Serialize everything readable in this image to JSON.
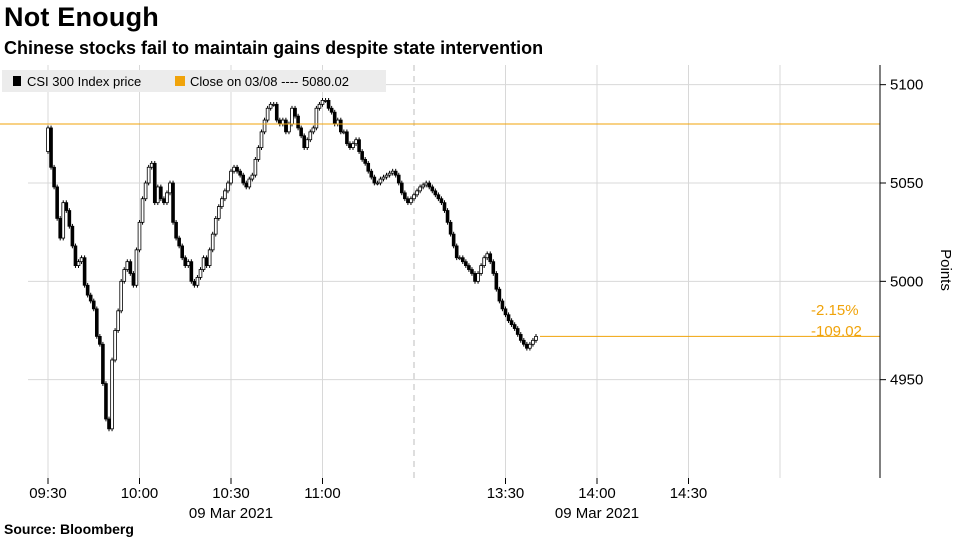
{
  "title": "Not Enough",
  "subtitle": "Chinese stocks fail to maintain gains despite state intervention",
  "source": "Source: Bloomberg",
  "colors": {
    "candle": "#000000",
    "reference": "#f0a30a",
    "grid": "#d8d8d8",
    "axis": "#000000"
  },
  "chart_data": {
    "type": "candlestick",
    "title": "Not Enough",
    "subtitle": "Chinese stocks fail to maintain gains despite state intervention",
    "ylabel": "Points",
    "ylim": [
      4900,
      5110
    ],
    "yticks": [
      4950,
      5000,
      5050,
      5100
    ],
    "xticks": [
      {
        "minute": 0,
        "label": "09:30"
      },
      {
        "minute": 30,
        "label": "10:00"
      },
      {
        "minute": 60,
        "label": "10:30"
      },
      {
        "minute": 90,
        "label": "11:00"
      },
      {
        "minute": 150,
        "label": "13:30"
      },
      {
        "minute": 180,
        "label": "14:00"
      },
      {
        "minute": 210,
        "label": "14:30"
      }
    ],
    "date_labels": [
      {
        "minute": 60,
        "label": "09 Mar 2021"
      },
      {
        "minute": 180,
        "label": "09 Mar 2021"
      }
    ],
    "session_break_minute": 120,
    "session_end_minute": 240,
    "grid": true,
    "legend": {
      "position": "top-left",
      "entries": [
        {
          "label": "CSI 300 Index price"
        },
        {
          "label": "Close on 03/08 ---- 5080.02"
        }
      ]
    },
    "reference_line": {
      "label": "Close on 03/08",
      "value": 5080.02
    },
    "annotations": [
      "-2.15%",
      "-109.02"
    ],
    "price_path": [
      [
        -5,
        5066
      ],
      [
        0,
        5078
      ],
      [
        1,
        5058
      ],
      [
        2,
        5048
      ],
      [
        3,
        5032
      ],
      [
        4,
        5022
      ],
      [
        5,
        5040
      ],
      [
        6,
        5036
      ],
      [
        7,
        5028
      ],
      [
        8,
        5018
      ],
      [
        9,
        5008
      ],
      [
        10,
        5010
      ],
      [
        11,
        5012
      ],
      [
        12,
        4998
      ],
      [
        13,
        4993
      ],
      [
        14,
        4990
      ],
      [
        15,
        4986
      ],
      [
        16,
        4972
      ],
      [
        17,
        4968
      ],
      [
        18,
        4948
      ],
      [
        19,
        4930
      ],
      [
        20,
        4925
      ],
      [
        21,
        4960
      ],
      [
        22,
        4975
      ],
      [
        23,
        4985
      ],
      [
        24,
        5000
      ],
      [
        25,
        5006
      ],
      [
        26,
        5010
      ],
      [
        27,
        5004
      ],
      [
        28,
        4998
      ],
      [
        29,
        5016
      ],
      [
        30,
        5030
      ],
      [
        31,
        5042
      ],
      [
        32,
        5050
      ],
      [
        33,
        5058
      ],
      [
        34,
        5060
      ],
      [
        35,
        5040
      ],
      [
        36,
        5048
      ],
      [
        37,
        5042
      ],
      [
        38,
        5040
      ],
      [
        39,
        5045
      ],
      [
        40,
        5050
      ],
      [
        41,
        5030
      ],
      [
        42,
        5022
      ],
      [
        43,
        5018
      ],
      [
        44,
        5012
      ],
      [
        45,
        5008
      ],
      [
        46,
        5010
      ],
      [
        47,
        5000
      ],
      [
        48,
        4998
      ],
      [
        49,
        5002
      ],
      [
        50,
        5006
      ],
      [
        51,
        5012
      ],
      [
        52,
        5008
      ],
      [
        53,
        5016
      ],
      [
        54,
        5024
      ],
      [
        55,
        5032
      ],
      [
        56,
        5038
      ],
      [
        57,
        5042
      ],
      [
        58,
        5046
      ],
      [
        59,
        5050
      ],
      [
        60,
        5056
      ],
      [
        61,
        5058
      ],
      [
        62,
        5056
      ],
      [
        63,
        5054
      ],
      [
        64,
        5050
      ],
      [
        65,
        5048
      ],
      [
        66,
        5052
      ],
      [
        67,
        5054
      ],
      [
        68,
        5062
      ],
      [
        69,
        5068
      ],
      [
        70,
        5076
      ],
      [
        71,
        5082
      ],
      [
        72,
        5088
      ],
      [
        73,
        5090
      ],
      [
        74,
        5090
      ],
      [
        75,
        5082
      ],
      [
        76,
        5080
      ],
      [
        77,
        5082
      ],
      [
        78,
        5076
      ],
      [
        79,
        5080
      ],
      [
        80,
        5088
      ],
      [
        81,
        5084
      ],
      [
        82,
        5078
      ],
      [
        83,
        5074
      ],
      [
        84,
        5068
      ],
      [
        85,
        5072
      ],
      [
        86,
        5076
      ],
      [
        87,
        5078
      ],
      [
        88,
        5088
      ],
      [
        89,
        5090
      ],
      [
        90,
        5092
      ],
      [
        91,
        5092
      ],
      [
        92,
        5088
      ],
      [
        93,
        5086
      ],
      [
        94,
        5080
      ],
      [
        95,
        5082
      ],
      [
        96,
        5076
      ],
      [
        97,
        5076
      ],
      [
        98,
        5070
      ],
      [
        99,
        5068
      ],
      [
        100,
        5070
      ],
      [
        101,
        5072
      ],
      [
        102,
        5066
      ],
      [
        103,
        5062
      ],
      [
        104,
        5060
      ],
      [
        105,
        5056
      ],
      [
        106,
        5053
      ],
      [
        107,
        5050
      ],
      [
        108,
        5050
      ],
      [
        109,
        5052
      ],
      [
        110,
        5053
      ],
      [
        111,
        5054
      ],
      [
        112,
        5055
      ],
      [
        113,
        5056
      ],
      [
        114,
        5054
      ],
      [
        115,
        5050
      ],
      [
        116,
        5045
      ],
      [
        117,
        5042
      ],
      [
        118,
        5040
      ],
      [
        119,
        5042
      ],
      [
        120,
        5044
      ],
      [
        121,
        5046
      ],
      [
        122,
        5048
      ],
      [
        123,
        5049
      ],
      [
        124,
        5050
      ],
      [
        125,
        5048
      ],
      [
        126,
        5046
      ],
      [
        127,
        5044
      ],
      [
        128,
        5042
      ],
      [
        129,
        5040
      ],
      [
        130,
        5036
      ],
      [
        131,
        5030
      ],
      [
        132,
        5024
      ],
      [
        133,
        5018
      ],
      [
        134,
        5012
      ],
      [
        135,
        5012
      ],
      [
        136,
        5010
      ],
      [
        137,
        5008
      ],
      [
        138,
        5006
      ],
      [
        139,
        5004
      ],
      [
        140,
        5000
      ],
      [
        141,
        5004
      ],
      [
        142,
        5008
      ],
      [
        143,
        5012
      ],
      [
        144,
        5014
      ],
      [
        145,
        5010
      ],
      [
        146,
        5004
      ],
      [
        147,
        4996
      ],
      [
        148,
        4990
      ],
      [
        149,
        4986
      ],
      [
        150,
        4983
      ],
      [
        151,
        4980
      ],
      [
        152,
        4978
      ],
      [
        153,
        4976
      ],
      [
        154,
        4973
      ],
      [
        155,
        4970
      ],
      [
        156,
        4968
      ],
      [
        157,
        4966
      ],
      [
        158,
        4968
      ],
      [
        159,
        4970
      ],
      [
        160,
        4972
      ]
    ]
  }
}
